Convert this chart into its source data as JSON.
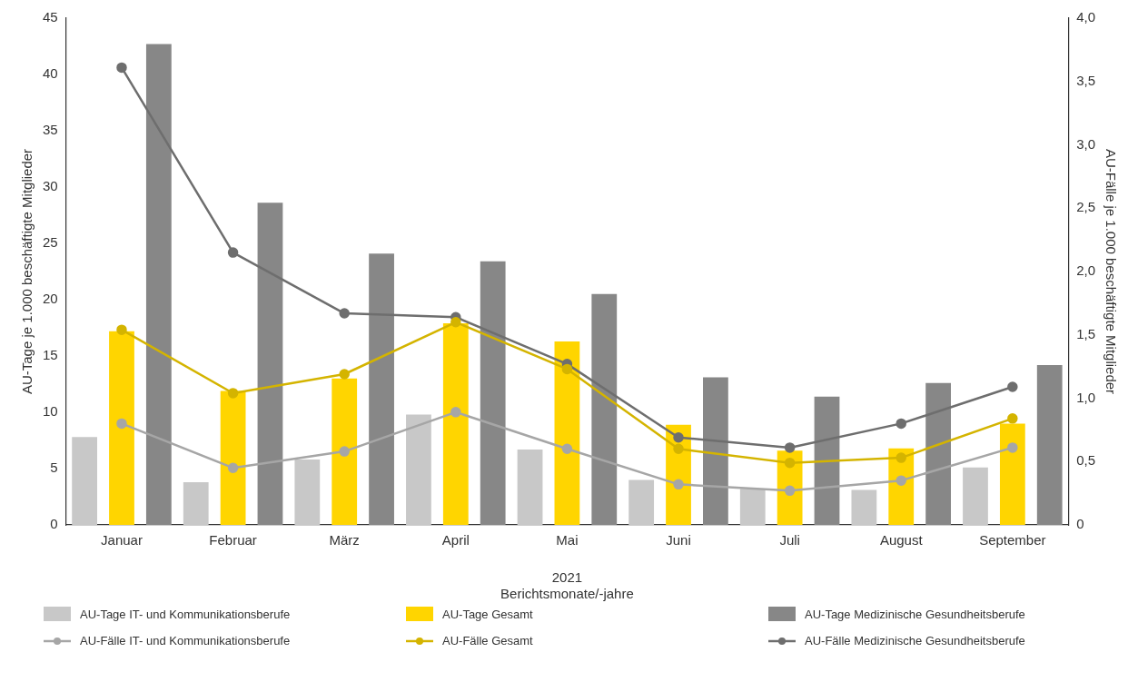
{
  "chart_data": {
    "type": "bar",
    "xlabel": "2021\nBerichtsmonate/-jahre",
    "ylabel": "AU-Tage je 1.000 beschäftigte Mitglieder",
    "y2label": "AU-Fälle je 1.000 beschäftigte Mitglieder",
    "categories": [
      "Januar",
      "Februar",
      "März",
      "April",
      "Mai",
      "Juni",
      "Juli",
      "August",
      "September"
    ],
    "ylim": [
      0,
      45
    ],
    "yticks": [
      0,
      5,
      10,
      15,
      20,
      25,
      30,
      35,
      40,
      45
    ],
    "y2lim": [
      0,
      4
    ],
    "y2ticks": [
      {
        "value": 0,
        "label": "0"
      },
      {
        "value": 0.5,
        "label": "0,5"
      },
      {
        "value": 1,
        "label": "1,0"
      },
      {
        "value": 1.5,
        "label": "1,5"
      },
      {
        "value": 2,
        "label": "2,0"
      },
      {
        "value": 2.5,
        "label": "2,5"
      },
      {
        "value": 3,
        "label": "3,0"
      },
      {
        "value": 3.5,
        "label": "3,5"
      },
      {
        "value": 4,
        "label": "4,0"
      }
    ],
    "grid": false,
    "legend": "bottom",
    "series": [
      {
        "name": "AU-Tage IT- und Kommunikationsberufe",
        "color": "#c8c8c8",
        "values": [
          7.8,
          3.8,
          5.8,
          9.8,
          6.7,
          4.0,
          3.2,
          3.1,
          5.1
        ]
      },
      {
        "name": "AU-Tage Gesamt",
        "color": "#ffd500",
        "values": [
          17.2,
          11.9,
          13.0,
          17.9,
          16.3,
          8.9,
          6.6,
          6.8,
          9.0
        ]
      },
      {
        "name": "AU-Tage Medizinische Gesundheitsberufe",
        "color": "#878787",
        "values": [
          42.7,
          28.6,
          24.1,
          23.4,
          20.5,
          13.1,
          11.4,
          12.6,
          14.2
        ]
      },
      {
        "type": "line",
        "axis": "y2",
        "marker": "circle",
        "name": "AU-Fälle IT- und Kommunikationsberufe",
        "color": "#a6a6a6",
        "values": [
          0.8,
          0.45,
          0.58,
          0.89,
          0.6,
          0.32,
          0.27,
          0.35,
          0.61
        ]
      },
      {
        "type": "line",
        "axis": "y2",
        "marker": "circle",
        "name": "AU-Fälle Gesamt",
        "color": "#d4b400",
        "values": [
          1.54,
          1.04,
          1.19,
          1.6,
          1.23,
          0.6,
          0.49,
          0.53,
          0.84
        ]
      },
      {
        "type": "line",
        "axis": "y2",
        "marker": "circle",
        "name": "AU-Fälle Medizinische Gesundheitsberufe",
        "color": "#6e6e6e",
        "values": [
          3.61,
          2.15,
          1.67,
          1.64,
          1.27,
          0.69,
          0.61,
          0.8,
          1.09
        ]
      }
    ]
  }
}
